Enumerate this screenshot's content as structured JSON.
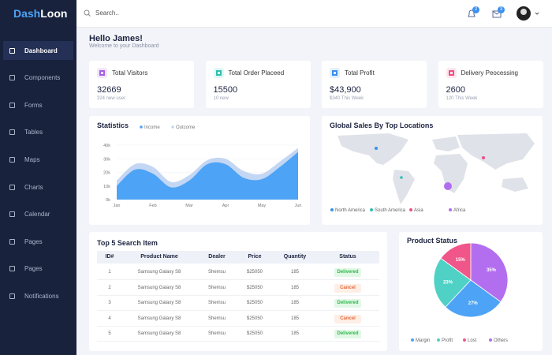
{
  "header": {
    "brand_a": "Dash",
    "brand_b": "Loon",
    "search": "Search..",
    "notifications": "2",
    "messages": "3"
  },
  "sidebar": [
    "Dashboard",
    "Components",
    "Forms",
    "Tables",
    "Maps",
    "Charts",
    "Calendar",
    "Pages",
    "Pages",
    "Notifications"
  ],
  "greeting": {
    "title": "Hello James!",
    "subtitle": "Welcome to your Dashboard"
  },
  "cards": [
    {
      "label": "Total Visitors",
      "value": "32669",
      "note": "324 new user"
    },
    {
      "label": "Total Order Placeed",
      "value": "15500",
      "note": "10 new"
    },
    {
      "label": "Total Profit",
      "value": "$43,900",
      "note": "$340 This Week"
    },
    {
      "label": "Delivery Peocessing",
      "value": "2600",
      "note": "120 This Week"
    }
  ],
  "map": {
    "title": "Global Sales By Top Locations",
    "legend": [
      "North America",
      "South America",
      "Asia",
      "Africa"
    ]
  },
  "table": {
    "title": "Top 5 Search Item",
    "columns": [
      "ID#",
      "Product Name",
      "Dealer",
      "Price",
      "Quantity",
      "Status"
    ],
    "rows": [
      [
        "1",
        "Samsung Galaxy S8",
        "Shemsu",
        "$25050",
        "185",
        "Delivered"
      ],
      [
        "2",
        "Samsung Galaxy S8",
        "Shemsu",
        "$25050",
        "185",
        "Cancel"
      ],
      [
        "3",
        "Samsung Galaxy S8",
        "Shemsu",
        "$25050",
        "185",
        "Delivered"
      ],
      [
        "4",
        "Samsung Galaxy S8",
        "Shemsu",
        "$25050",
        "185",
        "Cancel"
      ],
      [
        "5",
        "Samsung Galaxy S8",
        "Shemsu",
        "$25050",
        "185",
        "Delivered"
      ]
    ]
  },
  "chart_data": [
    {
      "type": "area",
      "title": "Statistics",
      "categories": [
        "Jan",
        null,
        "Feb",
        null,
        "Mar",
        null,
        "Apr",
        null,
        "May",
        null,
        "Jun"
      ],
      "series": [
        {
          "name": "Income",
          "color": "#4da3f5",
          "values": [
            10,
            22,
            19,
            9,
            14,
            26,
            26,
            16,
            15,
            24,
            35
          ]
        },
        {
          "name": "Outcome",
          "color": "#c3d6f3",
          "values": [
            14,
            26,
            24,
            13,
            18,
            29,
            30,
            21,
            19,
            28,
            38
          ]
        }
      ],
      "ylim": [
        0,
        40
      ],
      "yticks": [
        {
          "value": 0,
          "label": "0k"
        },
        {
          "value": 10,
          "label": "10k"
        },
        {
          "value": 20,
          "label": "20k"
        },
        {
          "value": 30,
          "label": "30k"
        },
        {
          "value": 40,
          "label": "40k"
        }
      ],
      "grid": true
    },
    {
      "type": "pie",
      "title": "Product Status",
      "categories": [
        "Margin",
        "Profit",
        "Lost",
        "Others"
      ],
      "values": [
        27,
        23,
        15,
        35
      ],
      "value_labels": [
        "27%",
        "23%",
        "15%",
        "35%"
      ],
      "colors": [
        "#4da3f5",
        "#4fd1c5",
        "#f0568a",
        "#b36ef0"
      ]
    }
  ]
}
